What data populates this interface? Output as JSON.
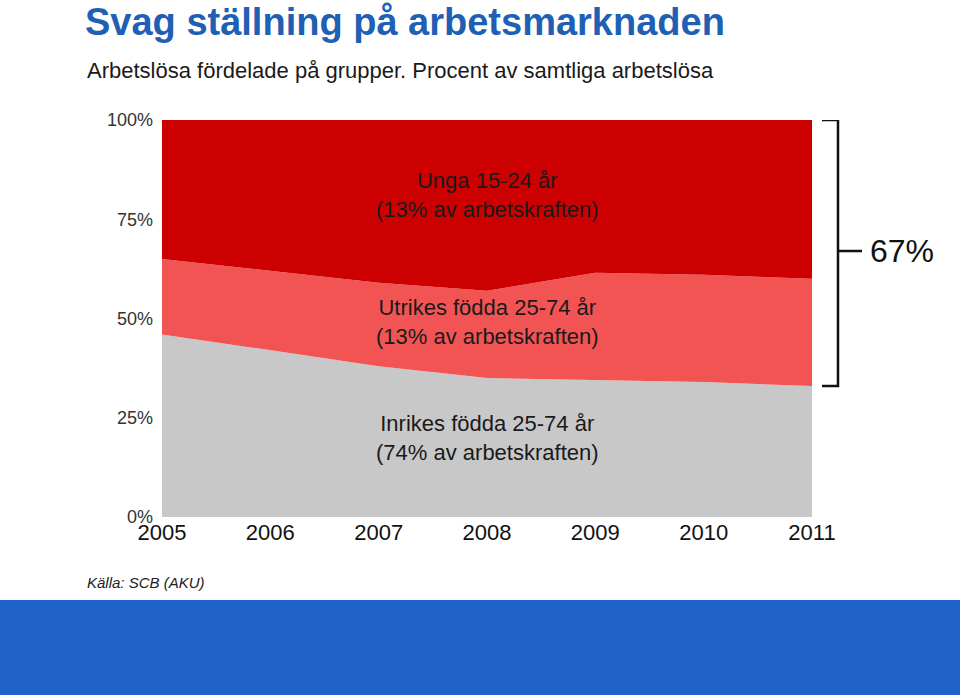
{
  "chart_data": {
    "type": "area",
    "stacked": true,
    "title": "Svag ställning på arbetsmarknaden",
    "subtitle": "Arbetslösa fördelade på grupper. Procent av samtliga arbetslösa",
    "source": "Källa: SCB (AKU)",
    "categories": [
      "2005",
      "2006",
      "2007",
      "2008",
      "2009",
      "2010",
      "2011"
    ],
    "series": [
      {
        "name": "Inrikes födda 25-74 år",
        "color": "#c8c8c8",
        "values": [
          46,
          42,
          38,
          35,
          34.5,
          34,
          33
        ]
      },
      {
        "name": "Utrikes födda 25-74 år",
        "color": "#f25454",
        "values": [
          19,
          20,
          21,
          22,
          27,
          27,
          27
        ]
      },
      {
        "name": "Unga 15-24 år",
        "color": "#cc0000",
        "values": [
          35,
          38,
          41,
          43,
          38.5,
          39,
          40
        ]
      }
    ],
    "annotations": [
      {
        "series": "Unga 15-24 år",
        "text": "(13% av arbetskraften)",
        "x": "2008",
        "y": 81
      },
      {
        "series": "Utrikes födda 25-74 år",
        "text": "(13% av arbetskraften)",
        "x": "2008",
        "y": 49
      },
      {
        "series": "Inrikes födda 25-74 år",
        "text": "(74% av arbetskraften)",
        "x": "2008",
        "y": 20
      },
      {
        "text": "67%",
        "x": "2011",
        "y": 67
      }
    ],
    "ylim": [
      0,
      100
    ],
    "yticks": [
      {
        "value": 0,
        "label": "0%"
      },
      {
        "value": 25,
        "label": "25%"
      },
      {
        "value": 50,
        "label": "50%"
      },
      {
        "value": 75,
        "label": "75%"
      },
      {
        "value": 100,
        "label": "100%"
      }
    ],
    "grid": false,
    "legend": "none"
  }
}
